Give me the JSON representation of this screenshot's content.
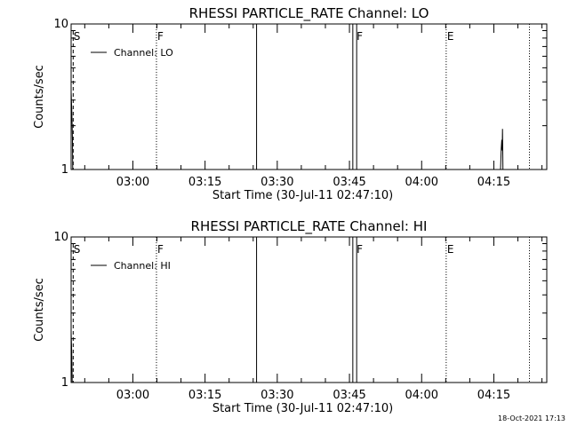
{
  "footer": {
    "timestamp": "18-Oct-2021 17:13"
  },
  "chart_data": [
    {
      "type": "line",
      "title": "RHESSI PARTICLE_RATE Channel: LO",
      "xlabel": "Start Time (30-Jul-11 02:47:10)",
      "ylabel": "Counts/sec",
      "yscale": "log",
      "ylim": [
        1,
        10
      ],
      "y_ticks": [
        "1",
        "10"
      ],
      "x_ticks": [
        "03:00",
        "03:15",
        "03:30",
        "03:45",
        "04:00",
        "04:15"
      ],
      "x_tick_minutes": [
        180,
        195,
        210,
        225,
        240,
        255
      ],
      "xlim_minutes": [
        167.17,
        266.0
      ],
      "legend": {
        "label": "Channel: LO",
        "position": "top-left"
      },
      "flags": [
        {
          "label": "S",
          "time_min": 167.5
        },
        {
          "label": "F",
          "time_min": 184.9
        },
        {
          "label": "F",
          "time_min": 226.3
        },
        {
          "label": "E",
          "time_min": 245.1
        }
      ],
      "dotted_lines_min": [
        184.9,
        245.1,
        262.4
      ],
      "dashed_lines_min": [
        167.6
      ],
      "solid_lines_min": [
        205.7,
        225.7,
        226.5
      ],
      "series": [
        {
          "points": [
            [
              167.17,
              3.4
            ],
            [
              167.3,
              2.6
            ],
            [
              167.45,
              1.6
            ],
            [
              167.5,
              1.0
            ],
            [
              256.4,
              1.0
            ],
            [
              256.55,
              1.4
            ],
            [
              256.65,
              1.6
            ],
            [
              256.75,
              1.35
            ],
            [
              256.8,
              1.9
            ],
            [
              256.9,
              1.0
            ]
          ]
        }
      ]
    },
    {
      "type": "line",
      "title": "RHESSI PARTICLE_RATE Channel: HI",
      "xlabel": "Start Time (30-Jul-11 02:47:10)",
      "ylabel": "Counts/sec",
      "yscale": "log",
      "ylim": [
        1,
        10
      ],
      "y_ticks": [
        "1",
        "10"
      ],
      "x_ticks": [
        "03:00",
        "03:15",
        "03:30",
        "03:45",
        "04:00",
        "04:15"
      ],
      "x_tick_minutes": [
        180,
        195,
        210,
        225,
        240,
        255
      ],
      "xlim_minutes": [
        167.17,
        266.0
      ],
      "legend": {
        "label": "Channel: HI",
        "position": "top-left"
      },
      "flags": [
        {
          "label": "S",
          "time_min": 167.5
        },
        {
          "label": "F",
          "time_min": 184.9
        },
        {
          "label": "F",
          "time_min": 226.3
        },
        {
          "label": "E",
          "time_min": 245.1
        }
      ],
      "dotted_lines_min": [
        184.9,
        245.1,
        262.4
      ],
      "dashed_lines_min": [
        167.6
      ],
      "solid_lines_min": [
        205.7,
        225.7,
        226.5
      ],
      "series": [
        {
          "points": [
            [
              167.17,
              2.2
            ],
            [
              167.3,
              1.6
            ],
            [
              167.4,
              1.0
            ]
          ]
        }
      ]
    }
  ]
}
